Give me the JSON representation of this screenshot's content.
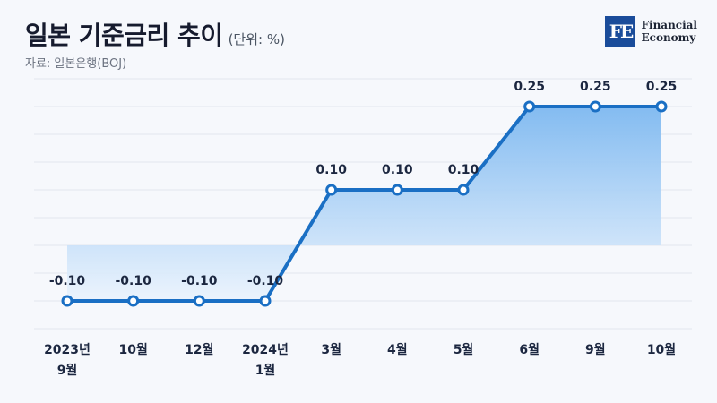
{
  "header": {
    "title": "일본 기준금리 추이",
    "unit": "(단위: %)",
    "source": "자료: 일본은행(BOJ)"
  },
  "logo": {
    "mark": "FE",
    "line1": "Financial",
    "line2": "Economy"
  },
  "colors": {
    "line": "#1a6fc4",
    "fill_top": "#7db8f0",
    "fill_bottom": "#eaf3fd",
    "grid": "#e2e6ee"
  },
  "chart_data": {
    "type": "line",
    "title": "일본 기준금리 추이",
    "ylabel": "",
    "xlabel": "",
    "categories": [
      [
        "2023년",
        "9월"
      ],
      [
        "10월"
      ],
      [
        "12월"
      ],
      [
        "2024년",
        "1월"
      ],
      [
        "3월"
      ],
      [
        "4월"
      ],
      [
        "5월"
      ],
      [
        "6월"
      ],
      [
        "9월"
      ],
      [
        "10월"
      ]
    ],
    "values": [
      -0.1,
      -0.1,
      -0.1,
      -0.1,
      0.1,
      0.1,
      0.1,
      0.25,
      0.25,
      0.25
    ],
    "value_labels": [
      "-0.10",
      "-0.10",
      "-0.10",
      "-0.10",
      "0.10",
      "0.10",
      "0.10",
      "0.25",
      "0.25",
      "0.25"
    ],
    "ylim": [
      -0.15,
      0.3
    ],
    "grid": true,
    "area_fill": true
  }
}
